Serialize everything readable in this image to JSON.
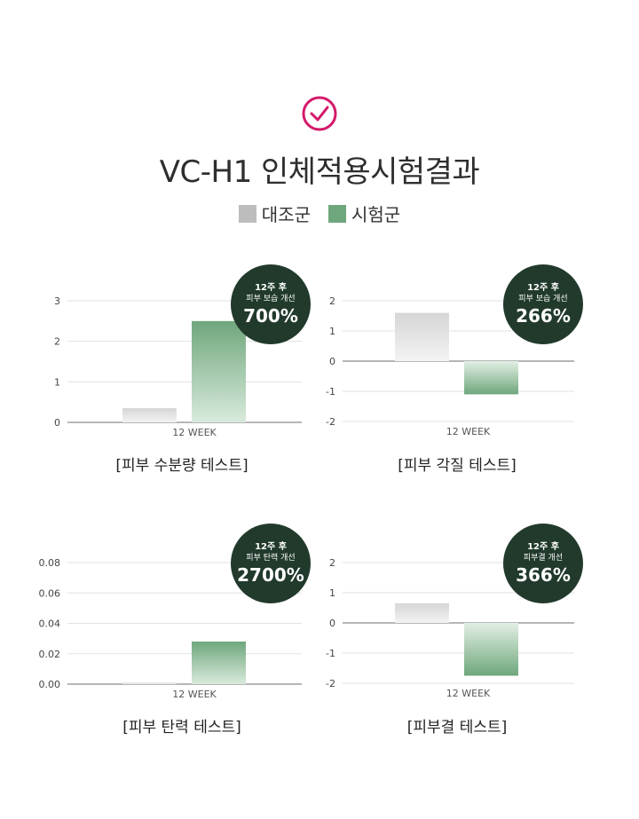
{
  "title": "VC-H1 인체적용시험결과",
  "colors": {
    "control": "#bdbdbd",
    "test": "#6fa77c",
    "badge_bg": "#213a2c",
    "check": "#d4196a"
  },
  "legend": {
    "control": "대조군",
    "test": "시험군"
  },
  "chart_data": [
    {
      "type": "bar",
      "caption": "[피부 수분량 테스트]",
      "categories": [
        "12 WEEK"
      ],
      "series": [
        {
          "name": "대조군",
          "values": [
            0.35
          ]
        },
        {
          "name": "시험군",
          "values": [
            2.5
          ]
        }
      ],
      "yticks": [
        "0",
        "1",
        "2",
        "3"
      ],
      "ylim": [
        0,
        3
      ],
      "badge": {
        "line1": "12주 후",
        "line2": "피부 보습 개선",
        "value": "700%"
      }
    },
    {
      "type": "bar",
      "caption": "[피부 각질 테스트]",
      "categories": [
        "12 WEEK"
      ],
      "series": [
        {
          "name": "대조군",
          "values": [
            1.6
          ]
        },
        {
          "name": "시험군",
          "values": [
            -1.1
          ]
        }
      ],
      "yticks": [
        "-2",
        "-1",
        "0",
        "1",
        "2"
      ],
      "ylim": [
        -2,
        2
      ],
      "badge": {
        "line1": "12주 후",
        "line2": "피부 보습 개선",
        "value": "266%"
      }
    },
    {
      "type": "bar",
      "caption": "[피부 탄력 테스트]",
      "categories": [
        "12 WEEK"
      ],
      "series": [
        {
          "name": "대조군",
          "values": [
            0.001
          ]
        },
        {
          "name": "시험군",
          "values": [
            0.028
          ]
        }
      ],
      "yticks": [
        "0.00",
        "0.02",
        "0.04",
        "0.06",
        "0.08"
      ],
      "ylim": [
        0,
        0.08
      ],
      "badge": {
        "line1": "12주 후",
        "line2": "피부 탄력 개선",
        "value": "2700%"
      }
    },
    {
      "type": "bar",
      "caption": "[피부결 테스트]",
      "categories": [
        "12 WEEK"
      ],
      "series": [
        {
          "name": "대조군",
          "values": [
            0.65
          ]
        },
        {
          "name": "시험군",
          "values": [
            -1.75
          ]
        }
      ],
      "yticks": [
        "-2",
        "-1",
        "0",
        "1",
        "2"
      ],
      "ylim": [
        -2,
        2
      ],
      "badge": {
        "line1": "12주 후",
        "line2": "피부결 개선",
        "value": "366%"
      }
    }
  ]
}
